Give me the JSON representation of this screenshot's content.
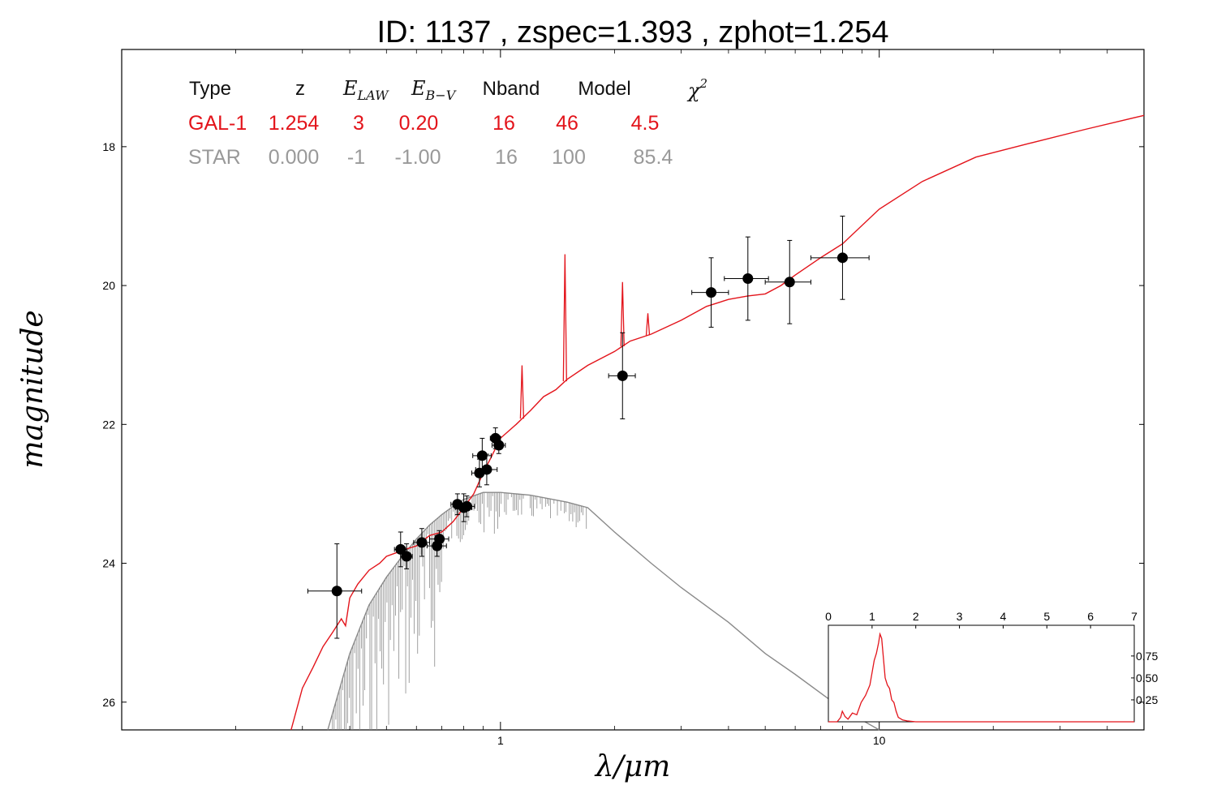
{
  "title": "ID:  1137  , zspec=1.393 , zphot=1.254",
  "colors": {
    "galaxy": "#e3141b",
    "star": "#8a8a8a",
    "points": "#000000"
  },
  "table": {
    "headers": [
      "Type",
      "z",
      "E_LAW",
      "E_B-V",
      "Nband",
      "Model",
      "χ2"
    ],
    "rows": [
      {
        "type": "GAL-1",
        "z": "1.254",
        "elaw": "3",
        "ebv": "0.20",
        "nband": "16",
        "model": "46",
        "chi2": "4.5",
        "color": "#e3141b"
      },
      {
        "type": "STAR",
        "z": "0.000",
        "elaw": "-1",
        "ebv": "-1.00",
        "nband": "16",
        "model": "100",
        "chi2": "85.4",
        "color": "#999999"
      }
    ]
  },
  "chart_data": [
    {
      "type": "scatter",
      "title": "ID:  1137  , zspec=1.393 , zphot=1.254",
      "xlabel": "λ/μm",
      "ylabel": "magnitude",
      "xscale": "log",
      "xlim": [
        0.1,
        50
      ],
      "ylim": [
        26.4,
        16.6
      ],
      "y_inverted": true,
      "x_ticks": [
        1,
        10
      ],
      "x_tick_labels": [
        "1",
        "10"
      ],
      "y_ticks": [
        18,
        20,
        22,
        24,
        26
      ],
      "y_tick_labels": [
        "18",
        "20",
        "22",
        "24",
        "26"
      ],
      "points": [
        {
          "x": 0.37,
          "y": 24.4,
          "xerr": 0.06,
          "yerr": 0.68
        },
        {
          "x": 0.545,
          "y": 23.8,
          "xerr": 0.02,
          "yerr": 0.25
        },
        {
          "x": 0.565,
          "y": 23.9,
          "xerr": 0.02,
          "yerr": 0.18
        },
        {
          "x": 0.62,
          "y": 23.7,
          "xerr": 0.03,
          "yerr": 0.2
        },
        {
          "x": 0.68,
          "y": 23.75,
          "xerr": 0.04,
          "yerr": 0.15
        },
        {
          "x": 0.69,
          "y": 23.65,
          "xerr": 0.04,
          "yerr": 0.12
        },
        {
          "x": 0.77,
          "y": 23.15,
          "xerr": 0.03,
          "yerr": 0.15
        },
        {
          "x": 0.8,
          "y": 23.2,
          "xerr": 0.04,
          "yerr": 0.2
        },
        {
          "x": 0.815,
          "y": 23.18,
          "xerr": 0.04,
          "yerr": 0.15
        },
        {
          "x": 0.88,
          "y": 22.7,
          "xerr": 0.04,
          "yerr": 0.2
        },
        {
          "x": 0.895,
          "y": 22.45,
          "xerr": 0.05,
          "yerr": 0.25
        },
        {
          "x": 0.92,
          "y": 22.65,
          "xerr": 0.06,
          "yerr": 0.22
        },
        {
          "x": 0.97,
          "y": 22.2,
          "xerr": 0.03,
          "yerr": 0.15
        },
        {
          "x": 0.99,
          "y": 22.3,
          "xerr": 0.04,
          "yerr": 0.12
        },
        {
          "x": 2.1,
          "y": 21.3,
          "xerr": 0.17,
          "yerr": 0.62
        },
        {
          "x": 3.6,
          "y": 20.1,
          "xerr": 0.4,
          "yerr": 0.5
        },
        {
          "x": 4.5,
          "y": 19.9,
          "xerr": 0.6,
          "yerr": 0.6
        },
        {
          "x": 5.8,
          "y": 19.95,
          "xerr": 0.8,
          "yerr": 0.6
        },
        {
          "x": 8.0,
          "y": 19.6,
          "xerr": 1.4,
          "yerr": 0.6
        }
      ],
      "series": [
        {
          "name": "GAL-1",
          "type": "line",
          "x": [
            0.28,
            0.3,
            0.32,
            0.34,
            0.36,
            0.38,
            0.39,
            0.4,
            0.42,
            0.45,
            0.48,
            0.5,
            0.53,
            0.56,
            0.6,
            0.65,
            0.7,
            0.75,
            0.8,
            0.85,
            0.9,
            0.95,
            1.0,
            1.1,
            1.2,
            1.3,
            1.4,
            1.5,
            1.7,
            2.0,
            2.2,
            2.5,
            3.0,
            3.5,
            4.0,
            4.5,
            5.0,
            5.5,
            6.0,
            7.0,
            8.0,
            10,
            13,
            18,
            25,
            35,
            50
          ],
          "y": [
            26.4,
            25.8,
            25.5,
            25.2,
            25.0,
            24.8,
            24.9,
            24.5,
            24.3,
            24.1,
            24.0,
            23.9,
            23.85,
            23.8,
            23.75,
            23.6,
            23.55,
            23.4,
            23.2,
            23.0,
            22.7,
            22.45,
            22.2,
            22.0,
            21.8,
            21.6,
            21.5,
            21.35,
            21.15,
            20.95,
            20.8,
            20.7,
            20.5,
            20.3,
            20.2,
            20.15,
            20.12,
            20.0,
            19.85,
            19.6,
            19.4,
            18.9,
            18.5,
            18.15,
            17.95,
            17.75,
            17.55
          ]
        },
        {
          "name": "STAR",
          "type": "line",
          "x": [
            0.35,
            0.4,
            0.45,
            0.5,
            0.55,
            0.6,
            0.65,
            0.7,
            0.75,
            0.8,
            0.9,
            1.0,
            1.2,
            1.5,
            1.7,
            2.0,
            2.5,
            3.0,
            4.0,
            5.0,
            6.0,
            8.0,
            10.0
          ],
          "y": [
            26.4,
            25.3,
            24.6,
            24.2,
            23.9,
            23.65,
            23.45,
            23.3,
            23.18,
            23.08,
            22.98,
            22.98,
            23.02,
            23.12,
            23.2,
            23.55,
            24.0,
            24.35,
            24.85,
            25.3,
            25.6,
            26.1,
            26.4
          ]
        }
      ],
      "emission_lines": [
        {
          "x": 1.14,
          "peak": 21.15
        },
        {
          "x": 1.48,
          "peak": 19.55
        },
        {
          "x": 2.1,
          "peak": 19.95
        },
        {
          "x": 2.45,
          "peak": 20.4
        }
      ]
    },
    {
      "type": "line",
      "xlim": [
        0,
        7
      ],
      "x_ticks": [
        0,
        1,
        2,
        3,
        4,
        5,
        6,
        7
      ],
      "x_tick_labels": [
        "0",
        "1",
        "2",
        "3",
        "4",
        "5",
        "6",
        "7"
      ],
      "ylim": [
        0,
        1.1
      ],
      "y_ticks": [
        0.25,
        0.5,
        0.75
      ],
      "y_tick_labels": [
        "0.25",
        "0.50",
        "0.75"
      ],
      "series": [
        {
          "x": [
            0,
            0.2,
            0.28,
            0.32,
            0.38,
            0.45,
            0.55,
            0.65,
            0.75,
            0.85,
            0.95,
            1.05,
            1.1,
            1.15,
            1.18,
            1.22,
            1.26,
            1.3,
            1.35,
            1.4,
            1.45,
            1.5,
            1.55,
            1.6,
            1.7,
            1.8,
            2.0,
            3.0,
            5.0,
            7.0
          ],
          "y": [
            0,
            0,
            0.05,
            0.12,
            0.06,
            0.03,
            0.1,
            0.08,
            0.22,
            0.3,
            0.42,
            0.7,
            0.78,
            0.9,
            1.0,
            0.95,
            0.72,
            0.5,
            0.42,
            0.38,
            0.25,
            0.22,
            0.12,
            0.05,
            0.02,
            0.01,
            0,
            0,
            0,
            0
          ]
        }
      ]
    }
  ]
}
